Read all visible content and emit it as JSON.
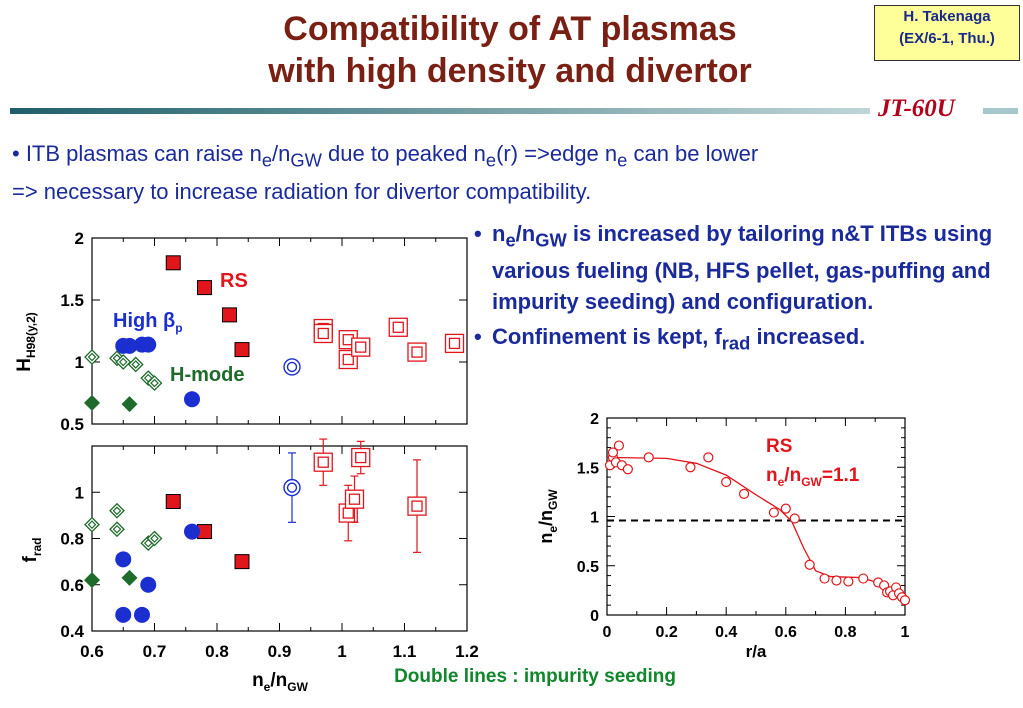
{
  "title": {
    "line1": "Compatibility of AT plasmas",
    "line2": "with high density and divertor"
  },
  "badge": {
    "line1": "H. Takenaga",
    "line2": "(EX/6-1, Thu.)"
  },
  "brand": "JT-60U",
  "intro": {
    "bullet": "•",
    "p1": " ITB plasmas can raise n",
    "p1s": "e",
    "p2": "/n",
    "p2s": "GW",
    "p3": " due to peaked n",
    "p3s": "e",
    "p4": "(r) =>edge n",
    "p4s": "e",
    "p5": " can be lower",
    "line2": "=> necessary to increase radiation for divertor compatibility."
  },
  "right_bullets": {
    "b1_n": "n",
    "b1_s1": "e",
    "b1_m": "/n",
    "b1_s2": "GW",
    "b1_rest": " is increased by tailoring n&T ITBs using various fueling (NB, HFS pellet, gas-puffing and impurity seeding) and configuration.",
    "b2_a": "Confinement is kept, f",
    "b2_s": "rad",
    "b2_b": " increased.",
    "bullet": "•"
  },
  "footnote": "Double lines : impurity seeding",
  "colors": {
    "rs": "#e0161c",
    "highbp": "#1b2fd1",
    "hmode": "#1e6b2b",
    "open_ring": "#1b2fd1",
    "profile": "#e0161c"
  },
  "chart_data": [
    {
      "type": "scatter",
      "id": "h98",
      "ylabel": "H",
      "ylabel_sub": "H98(y,2)",
      "ylim": [
        0.5,
        2.0
      ],
      "yticks": [
        "0.5",
        "1",
        "1.5",
        "2"
      ],
      "xlim": [
        0.6,
        1.2
      ],
      "grid": false,
      "annotations": [
        {
          "text": "RS",
          "color": "rs"
        },
        {
          "text": "High β",
          "sub": "p",
          "color": "highbp"
        },
        {
          "text": "H-mode",
          "color": "hmode"
        }
      ],
      "series": [
        {
          "group": "RS",
          "marker": "filled-square",
          "color": "rs",
          "points": [
            [
              0.73,
              1.8
            ],
            [
              0.78,
              1.6
            ],
            [
              0.82,
              1.38
            ],
            [
              0.84,
              1.1
            ]
          ]
        },
        {
          "group": "RS",
          "marker": "double-square",
          "color": "rs",
          "points": [
            [
              0.97,
              1.27
            ],
            [
              0.97,
              1.23
            ],
            [
              1.01,
              1.18
            ],
            [
              1.01,
              1.02
            ],
            [
              1.03,
              1.12
            ],
            [
              1.09,
              1.28
            ],
            [
              1.12,
              1.08
            ],
            [
              1.18,
              1.15
            ]
          ]
        },
        {
          "group": "High βp",
          "marker": "filled-circle",
          "color": "highbp",
          "points": [
            [
              0.65,
              1.13
            ],
            [
              0.66,
              1.13
            ],
            [
              0.68,
              1.14
            ],
            [
              0.69,
              1.14
            ],
            [
              0.76,
              0.7
            ]
          ]
        },
        {
          "group": "High βp",
          "marker": "double-circle",
          "color": "open_ring",
          "points": [
            [
              0.92,
              0.96
            ]
          ]
        },
        {
          "group": "H-mode",
          "marker": "filled-diamond",
          "color": "hmode",
          "points": [
            [
              0.6,
              0.67
            ],
            [
              0.66,
              0.66
            ]
          ]
        },
        {
          "group": "H-mode",
          "marker": "double-diamond",
          "color": "hmode",
          "points": [
            [
              0.6,
              1.04
            ],
            [
              0.64,
              1.03
            ],
            [
              0.65,
              1.0
            ],
            [
              0.67,
              0.98
            ],
            [
              0.69,
              0.87
            ],
            [
              0.7,
              0.83
            ]
          ]
        }
      ]
    },
    {
      "type": "scatter",
      "id": "frad",
      "ylabel": "f",
      "ylabel_sub": "rad",
      "ylim": [
        0.4,
        1.2
      ],
      "yticks": [
        "0.4",
        "0.6",
        "0.8",
        "1"
      ],
      "xlim": [
        0.6,
        1.2
      ],
      "xticks": [
        "0.6",
        "0.7",
        "0.8",
        "0.9",
        "1",
        "1.1",
        "1.2"
      ],
      "xlabel": "n",
      "xlabel_s1": "e",
      "xlabel_m": "/n",
      "xlabel_s2": "GW",
      "grid": false,
      "series": [
        {
          "group": "RS",
          "marker": "filled-square",
          "color": "rs",
          "points": [
            [
              0.73,
              0.96
            ],
            [
              0.78,
              0.83
            ],
            [
              0.84,
              0.7
            ]
          ]
        },
        {
          "group": "RS",
          "marker": "double-square",
          "color": "rs",
          "points": [
            [
              0.97,
              1.13,
              0.1
            ],
            [
              1.01,
              0.91,
              0.12
            ],
            [
              1.02,
              0.97,
              0.1
            ],
            [
              1.03,
              1.15,
              0.07
            ],
            [
              1.12,
              0.94,
              0.2
            ]
          ]
        },
        {
          "group": "High βp",
          "marker": "filled-circle",
          "color": "highbp",
          "points": [
            [
              0.65,
              0.47
            ],
            [
              0.65,
              0.71
            ],
            [
              0.68,
              0.47
            ],
            [
              0.69,
              0.6
            ],
            [
              0.76,
              0.83
            ]
          ]
        },
        {
          "group": "High βp",
          "marker": "double-circle",
          "color": "open_ring",
          "points": [
            [
              0.92,
              1.02,
              0.15
            ]
          ]
        },
        {
          "group": "H-mode",
          "marker": "filled-diamond",
          "color": "hmode",
          "points": [
            [
              0.6,
              0.62
            ],
            [
              0.66,
              0.63
            ]
          ]
        },
        {
          "group": "H-mode",
          "marker": "double-diamond",
          "color": "hmode",
          "points": [
            [
              0.6,
              0.86
            ],
            [
              0.64,
              0.92
            ],
            [
              0.64,
              0.84
            ],
            [
              0.69,
              0.78
            ],
            [
              0.7,
              0.8
            ]
          ]
        }
      ]
    },
    {
      "type": "line",
      "id": "profile",
      "xlabel": "r/a",
      "ylabel": "n",
      "ylabel_s1": "e",
      "ylabel_m": "/n",
      "ylabel_s2": "GW",
      "xlim": [
        0,
        1
      ],
      "ylim": [
        0,
        2
      ],
      "xticks": [
        "0",
        "0.2",
        "0.4",
        "0.6",
        "0.8",
        "1"
      ],
      "yticks": [
        "0",
        "0.5",
        "1",
        "1.5",
        "2"
      ],
      "legend": {
        "line1": "RS",
        "l2_n": "n",
        "l2_s1": "e",
        "l2_m": "/n",
        "l2_s2": "GW",
        "l2_v": "=1.1"
      },
      "reference_line": {
        "y": 0.96,
        "style": "dashed"
      },
      "points": [
        [
          0.01,
          1.52
        ],
        [
          0.02,
          1.6
        ],
        [
          0.02,
          1.65
        ],
        [
          0.03,
          1.55
        ],
        [
          0.04,
          1.72
        ],
        [
          0.05,
          1.52
        ],
        [
          0.07,
          1.48
        ],
        [
          0.14,
          1.6
        ],
        [
          0.28,
          1.5
        ],
        [
          0.34,
          1.6
        ],
        [
          0.4,
          1.35
        ],
        [
          0.46,
          1.23
        ],
        [
          0.56,
          1.04
        ],
        [
          0.6,
          1.08
        ],
        [
          0.63,
          0.98
        ],
        [
          0.68,
          0.51
        ],
        [
          0.73,
          0.37
        ],
        [
          0.77,
          0.35
        ],
        [
          0.81,
          0.34
        ],
        [
          0.86,
          0.37
        ],
        [
          0.91,
          0.33
        ],
        [
          0.93,
          0.3
        ],
        [
          0.94,
          0.23
        ],
        [
          0.95,
          0.24
        ],
        [
          0.96,
          0.2
        ],
        [
          0.97,
          0.28
        ],
        [
          0.98,
          0.22
        ],
        [
          0.99,
          0.18
        ],
        [
          1.0,
          0.15
        ]
      ],
      "fit": [
        [
          0.0,
          1.6
        ],
        [
          0.2,
          1.59
        ],
        [
          0.3,
          1.54
        ],
        [
          0.4,
          1.42
        ],
        [
          0.5,
          1.22
        ],
        [
          0.58,
          1.07
        ],
        [
          0.62,
          0.95
        ],
        [
          0.66,
          0.68
        ],
        [
          0.7,
          0.45
        ],
        [
          0.75,
          0.39
        ],
        [
          0.85,
          0.38
        ],
        [
          0.92,
          0.32
        ],
        [
          1.0,
          0.18
        ]
      ]
    }
  ]
}
